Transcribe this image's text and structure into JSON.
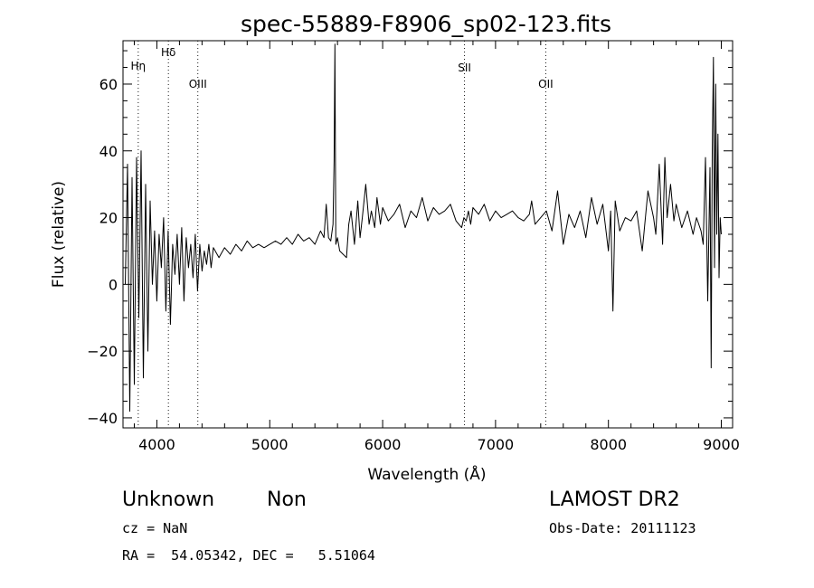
{
  "chart_data": {
    "type": "line",
    "title": "spec-55889-F8906_sp02-123.fits",
    "xlabel": "Wavelength (Å)",
    "ylabel": "Flux (relative)",
    "xlim": [
      3700,
      9100
    ],
    "ylim": [
      -43,
      73
    ],
    "xticks": [
      4000,
      5000,
      6000,
      7000,
      8000,
      9000
    ],
    "yticks": [
      -40,
      -20,
      0,
      20,
      40,
      60
    ],
    "grid": false,
    "line_color": "#000000",
    "annotations": [
      {
        "label": "Hη",
        "x": 3835
      },
      {
        "label": "Hδ",
        "x": 4102
      },
      {
        "label": "OIII",
        "x": 4363
      },
      {
        "label": "SII",
        "x": 6725
      },
      {
        "label": "OII",
        "x": 7445
      }
    ],
    "series": [
      {
        "x": [
          3720,
          3740,
          3760,
          3780,
          3800,
          3820,
          3840,
          3860,
          3880,
          3900,
          3920,
          3940,
          3960,
          3980,
          4000,
          4020,
          4040,
          4060,
          4080,
          4100,
          4120,
          4140,
          4160,
          4180,
          4200,
          4220,
          4240,
          4260,
          4280,
          4300,
          4320,
          4340,
          4360,
          4380,
          4400,
          4420,
          4440,
          4460,
          4480,
          4500,
          4550,
          4600,
          4650,
          4700,
          4750,
          4800,
          4850,
          4900,
          4950,
          5000,
          5050,
          5100,
          5150,
          5200,
          5250,
          5300,
          5350,
          5400,
          5450,
          5480,
          5500,
          5520,
          5540,
          5560,
          5570,
          5577,
          5585,
          5600,
          5620,
          5650,
          5680,
          5700,
          5720,
          5750,
          5780,
          5800,
          5820,
          5850,
          5880,
          5900,
          5930,
          5950,
          5980,
          6000,
          6050,
          6100,
          6150,
          6200,
          6250,
          6300,
          6350,
          6400,
          6450,
          6500,
          6550,
          6600,
          6650,
          6700,
          6720,
          6740,
          6760,
          6780,
          6800,
          6850,
          6900,
          6950,
          7000,
          7050,
          7100,
          7150,
          7200,
          7250,
          7300,
          7320,
          7350,
          7400,
          7450,
          7500,
          7550,
          7600,
          7650,
          7700,
          7750,
          7800,
          7850,
          7900,
          7950,
          8000,
          8020,
          8040,
          8060,
          8100,
          8150,
          8200,
          8250,
          8300,
          8350,
          8400,
          8420,
          8450,
          8480,
          8500,
          8520,
          8550,
          8580,
          8600,
          8650,
          8700,
          8750,
          8780,
          8800,
          8820,
          8840,
          8860,
          8880,
          8900,
          8910,
          8920,
          8930,
          8940,
          8950,
          8960,
          8970,
          8980,
          8990,
          9000
        ],
        "y": [
          0,
          36,
          -38,
          32,
          -30,
          38,
          -10,
          40,
          -28,
          30,
          -20,
          25,
          0,
          16,
          -5,
          15,
          5,
          20,
          -8,
          16,
          -12,
          12,
          3,
          15,
          0,
          17,
          -5,
          14,
          5,
          12,
          2,
          15,
          -2,
          12,
          4,
          10,
          6,
          12,
          5,
          11,
          8,
          11,
          9,
          12,
          10,
          13,
          11,
          12,
          11,
          12,
          13,
          12,
          14,
          12,
          15,
          13,
          14,
          12,
          16,
          14,
          24,
          14,
          13,
          18,
          37,
          72,
          12,
          14,
          10,
          9,
          8,
          18,
          22,
          12,
          25,
          14,
          20,
          30,
          18,
          22,
          17,
          26,
          18,
          23,
          19,
          21,
          24,
          17,
          22,
          20,
          26,
          19,
          23,
          21,
          22,
          24,
          19,
          17,
          20,
          19,
          22,
          18,
          23,
          21,
          24,
          19,
          22,
          20,
          21,
          22,
          20,
          19,
          21,
          25,
          18,
          20,
          22,
          16,
          28,
          12,
          21,
          17,
          22,
          14,
          26,
          18,
          24,
          10,
          22,
          -8,
          25,
          16,
          20,
          19,
          22,
          10,
          28,
          20,
          15,
          36,
          12,
          38,
          20,
          30,
          19,
          24,
          17,
          22,
          15,
          20,
          18,
          16,
          12,
          38,
          -5,
          35,
          -25,
          40,
          68,
          5,
          60,
          15,
          45,
          2,
          20,
          15
        ]
      }
    ]
  },
  "info": {
    "class_label": "Unknown",
    "subclass_label": "Non",
    "survey_label": "LAMOST DR2",
    "cz_label": "cz = NaN",
    "obs_date_label": "Obs-Date: 20111123",
    "coords_label": "RA =  54.05342, DEC =   5.51064"
  }
}
